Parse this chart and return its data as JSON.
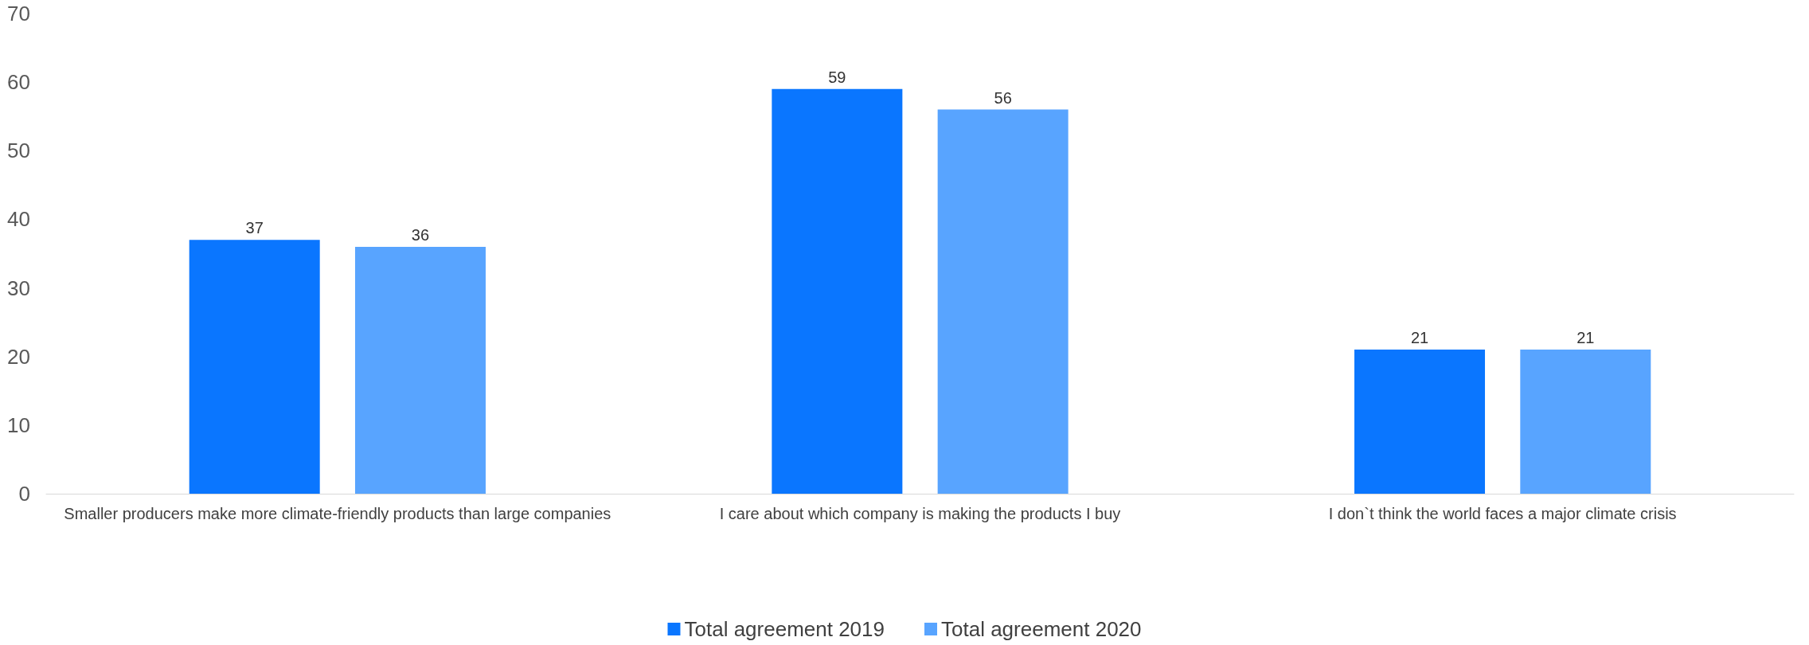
{
  "chart_data": {
    "type": "bar",
    "categories": [
      "Smaller producers make more climate-friendly products than large companies",
      "I care about which company is making the products I buy",
      "I don`t think the world faces a major climate crisis"
    ],
    "series": [
      {
        "name": "Total agreement 2019",
        "color": "#0a76ff",
        "values": [
          37,
          59,
          21
        ]
      },
      {
        "name": "Total agreement 2020",
        "color": "#58a4ff",
        "values": [
          36,
          56,
          21
        ]
      }
    ],
    "ylim": [
      0,
      70
    ],
    "yticks": [
      0,
      10,
      20,
      30,
      40,
      50,
      60,
      70
    ],
    "grid": false,
    "legend": "bottom",
    "data_labels": true
  }
}
